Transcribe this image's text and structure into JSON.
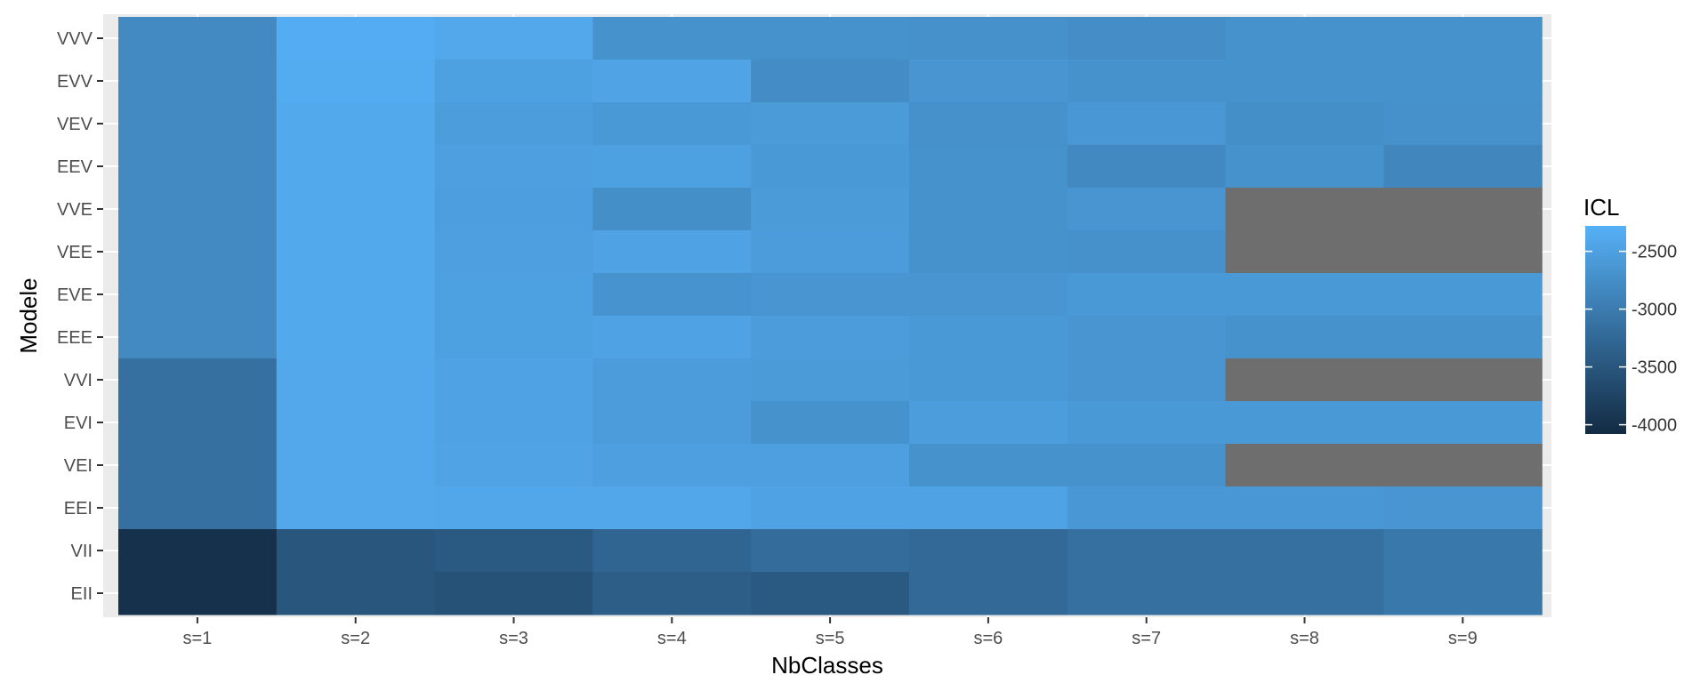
{
  "chart_data": {
    "type": "heatmap",
    "title": "",
    "xlabel": "NbClasses",
    "ylabel": "Modele",
    "x_categories": [
      "s=1",
      "s=2",
      "s=3",
      "s=4",
      "s=5",
      "s=6",
      "s=7",
      "s=8",
      "s=9"
    ],
    "y_categories": [
      "VVV",
      "EVV",
      "VEV",
      "EEV",
      "VVE",
      "VEE",
      "EVE",
      "EEE",
      "VVI",
      "EVI",
      "VEI",
      "EEI",
      "VII",
      "EII"
    ],
    "values": [
      [
        -2800,
        -2330,
        -2400,
        -2700,
        -2700,
        -2720,
        -2760,
        -2700,
        -2700
      ],
      [
        -2800,
        -2350,
        -2500,
        -2450,
        -2780,
        -2650,
        -2700,
        -2700,
        -2700
      ],
      [
        -2800,
        -2380,
        -2550,
        -2600,
        -2580,
        -2720,
        -2620,
        -2740,
        -2720
      ],
      [
        -2800,
        -2380,
        -2520,
        -2500,
        -2600,
        -2700,
        -2820,
        -2700,
        -2850
      ],
      [
        -2800,
        -2380,
        -2530,
        -2740,
        -2580,
        -2700,
        -2650,
        null,
        null
      ],
      [
        -2800,
        -2380,
        -2520,
        -2480,
        -2560,
        -2700,
        -2720,
        null,
        null
      ],
      [
        -2800,
        -2380,
        -2500,
        -2680,
        -2650,
        -2650,
        -2600,
        -2600,
        -2600
      ],
      [
        -2800,
        -2380,
        -2500,
        -2480,
        -2560,
        -2600,
        -2650,
        -2700,
        -2700
      ],
      [
        -3150,
        -2400,
        -2480,
        -2560,
        -2580,
        -2600,
        -2650,
        null,
        null
      ],
      [
        -3150,
        -2400,
        -2480,
        -2560,
        -2700,
        -2550,
        -2600,
        -2600,
        -2600
      ],
      [
        -3150,
        -2400,
        -2450,
        -2520,
        -2520,
        -2700,
        -2700,
        null,
        null
      ],
      [
        -3150,
        -2400,
        -2420,
        -2420,
        -2480,
        -2480,
        -2620,
        -2620,
        -2650
      ],
      [
        -4000,
        -3500,
        -3450,
        -3300,
        -3200,
        -3250,
        -3150,
        -3150,
        -3050
      ],
      [
        -4000,
        -3500,
        -3550,
        -3400,
        -3450,
        -3250,
        -3150,
        -3150,
        -3050
      ]
    ],
    "missing_color": "#6E6E6E",
    "colormap": {
      "low_color": "#132B43",
      "high_color": "#56B1F7",
      "limits": [
        -4080,
        -2280
      ]
    },
    "legend": {
      "title": "ICL",
      "position": "right",
      "ticks": [
        -2500,
        -3000,
        -3500,
        -4000
      ],
      "tick_labels": [
        "-2500",
        "-3000",
        "-3500",
        "-4000"
      ]
    },
    "panel_background": "#EBEBEB",
    "grid": true
  }
}
